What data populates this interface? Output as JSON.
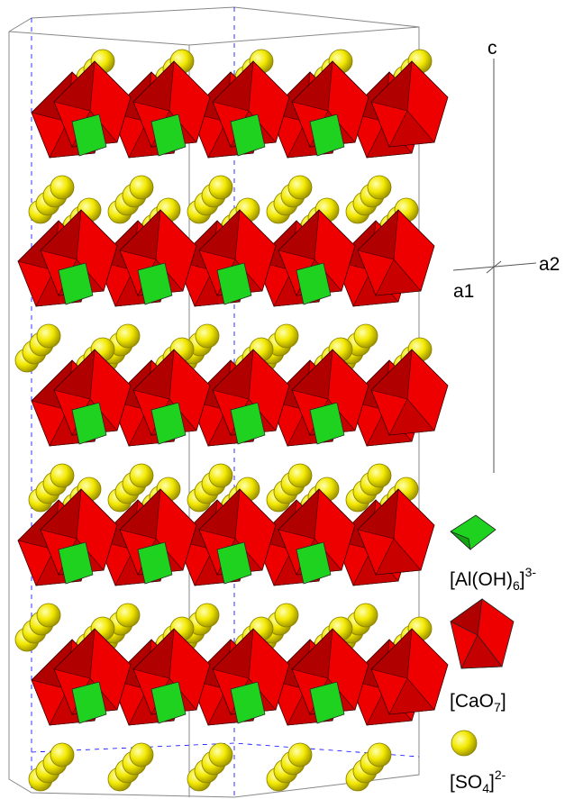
{
  "axes": {
    "c": "c",
    "a1": "a1",
    "a2": "a2"
  },
  "legend": [
    {
      "prefix": "[Al(OH)",
      "sub": "6",
      "suffix": "]",
      "sup": "3-"
    },
    {
      "prefix": "[CaO",
      "sub": "7",
      "suffix": "]",
      "sup": ""
    },
    {
      "prefix": "[SO",
      "sub": "4",
      "suffix": "]",
      "sup": "2-"
    }
  ]
}
